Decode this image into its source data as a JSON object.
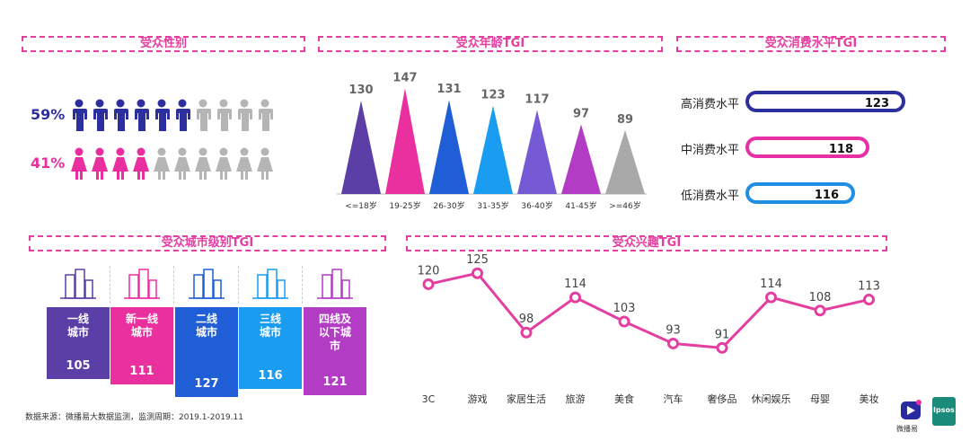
{
  "sections": {
    "gender": "受众性别",
    "age": "受众年龄TGI",
    "consumption": "受众消费水平TGI",
    "city": "受众城市级别TGI",
    "interest": "受众兴趣TGI"
  },
  "gender": {
    "male_pct": "59%",
    "female_pct": "41%",
    "male_highlight": 6,
    "female_highlight": 4,
    "total_icons": 10,
    "colors": {
      "male": "#2e2f9e",
      "female": "#e92f9f",
      "inactive": "#b5b5b5"
    }
  },
  "consumption": [
    {
      "label": "高消费水平",
      "value": "123",
      "color": "#2e2f9e"
    },
    {
      "label": "中消费水平",
      "value": "118",
      "color": "#e92fa4"
    },
    {
      "label": "低消费水平",
      "value": "116",
      "color": "#1f8fe6"
    }
  ],
  "city": [
    {
      "name": "一线\n城市",
      "value": "105",
      "color": "#5b3fa6"
    },
    {
      "name": "新一线\n城市",
      "value": "111",
      "color": "#ea2f9f"
    },
    {
      "name": "二线\n城市",
      "value": "127",
      "color": "#1f5ed6"
    },
    {
      "name": "三线\n城市",
      "value": "116",
      "color": "#1a9cf0"
    },
    {
      "name": "四线及\n以下城\n市",
      "value": "121",
      "color": "#b23cc4"
    }
  ],
  "chart_data": [
    {
      "type": "bar",
      "title": "受众年龄TGI",
      "categories": [
        "<=18岁",
        "19-25岁",
        "26-30岁",
        "31-35岁",
        "36-40岁",
        "41-45岁",
        ">=46岁"
      ],
      "values": [
        130,
        147,
        131,
        123,
        117,
        97,
        89
      ],
      "colors": [
        "#5b3fa6",
        "#ea2f9f",
        "#1f5ed6",
        "#1a9cf0",
        "#7659d4",
        "#b23cc4",
        "#a9a9a9"
      ]
    },
    {
      "type": "line",
      "title": "受众兴趣TGI",
      "categories": [
        "3C",
        "游戏",
        "家居生活",
        "旅游",
        "美食",
        "汽车",
        "奢侈品",
        "休闲娱乐",
        "母婴",
        "美妆"
      ],
      "values": [
        120,
        125,
        98,
        114,
        103,
        93,
        91,
        114,
        108,
        113
      ],
      "color": "#e43fa0"
    }
  ],
  "source": "数据来源：微播易大数据监测，监测周期：2019.1-2019.11",
  "logos": {
    "brand1": "微播易",
    "brand2": "Ipsos"
  }
}
